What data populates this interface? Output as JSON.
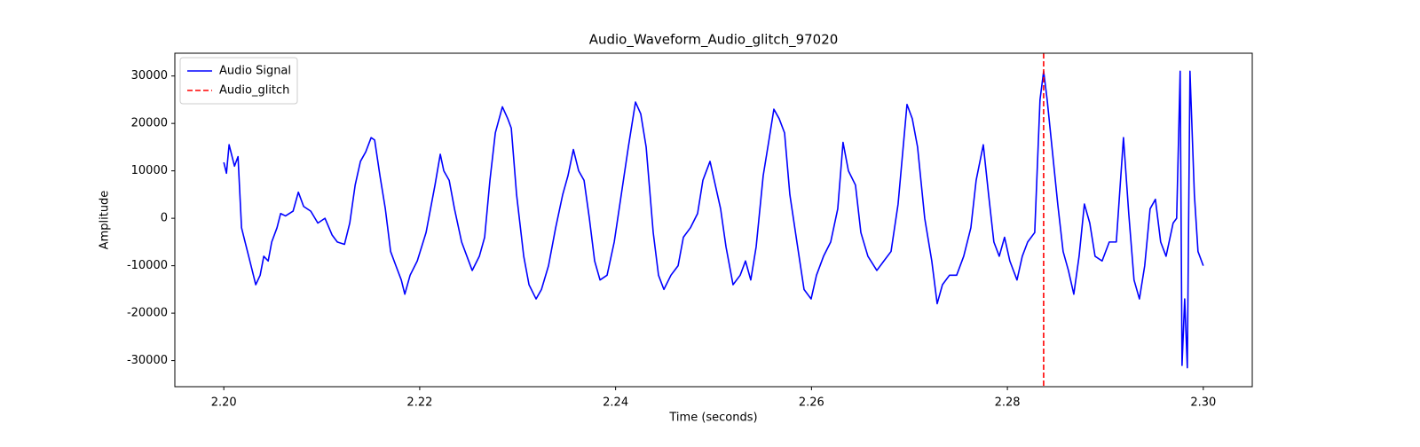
{
  "chart_data": {
    "type": "line",
    "title": "Audio_Waveform_Audio_glitch_97020",
    "xlabel": "Time (seconds)",
    "ylabel": "Amplitude",
    "x": [
      2.2,
      2.20027,
      2.20054,
      2.20109,
      2.20145,
      2.20181,
      2.20217,
      2.20254,
      2.2029,
      2.20326,
      2.20371,
      2.20408,
      2.20453,
      2.20489,
      2.20543,
      2.2058,
      2.2063,
      2.20707,
      2.20761,
      2.20815,
      2.20888,
      2.2096,
      2.21033,
      2.21105,
      2.21159,
      2.21232,
      2.21286,
      2.21341,
      2.21395,
      2.21449,
      2.21504,
      2.2154,
      2.21594,
      2.21649,
      2.21703,
      2.21757,
      2.21812,
      2.21848,
      2.21902,
      2.21975,
      2.22065,
      2.22156,
      2.2221,
      2.22246,
      2.22301,
      2.22355,
      2.22428,
      2.22482,
      2.22536,
      2.22609,
      2.22663,
      2.22717,
      2.22772,
      2.22844,
      2.22899,
      2.22935,
      2.22989,
      2.23062,
      2.23116,
      2.23188,
      2.23243,
      2.23315,
      2.23388,
      2.2346,
      2.23514,
      2.23569,
      2.23623,
      2.23678,
      2.23732,
      2.23786,
      2.23841,
      2.23913,
      2.23986,
      2.24058,
      2.2413,
      2.24203,
      2.24257,
      2.24312,
      2.24384,
      2.24438,
      2.24493,
      2.24565,
      2.24638,
      2.24692,
      2.24764,
      2.24837,
      2.24891,
      2.24964,
      2.25018,
      2.25072,
      2.25127,
      2.25199,
      2.25272,
      2.25326,
      2.2538,
      2.25435,
      2.25507,
      2.25562,
      2.25616,
      2.2567,
      2.25725,
      2.25779,
      2.25851,
      2.25924,
      2.25996,
      2.26051,
      2.26123,
      2.26196,
      2.26268,
      2.26322,
      2.26377,
      2.26449,
      2.26504,
      2.26576,
      2.26667,
      2.26739,
      2.26812,
      2.26884,
      2.26975,
      2.27029,
      2.27083,
      2.27156,
      2.27228,
      2.27283,
      2.27337,
      2.27409,
      2.27482,
      2.27554,
      2.27627,
      2.27681,
      2.27754,
      2.27808,
      2.27862,
      2.27917,
      2.27971,
      2.28025,
      2.28098,
      2.28152,
      2.28207,
      2.28279,
      2.28333,
      2.2837,
      2.28406,
      2.2846,
      2.28514,
      2.28569,
      2.28623,
      2.28678,
      2.28732,
      2.28786,
      2.28841,
      2.28895,
      2.28967,
      2.2904,
      2.29112,
      2.29185,
      2.29239,
      2.29293,
      2.29348,
      2.29402,
      2.29457,
      2.29511,
      2.29565,
      2.2962,
      2.29692,
      2.29728,
      2.29764,
      2.29783,
      2.2981,
      2.29837,
      2.29864,
      2.29909,
      2.29946,
      2.3
    ],
    "series": [
      {
        "name": "Audio Signal",
        "color": "#0000ff",
        "values": [
          11800,
          9500,
          15500,
          11000,
          13000,
          -2000,
          -5000,
          -8000,
          -11000,
          -14000,
          -12000,
          -8000,
          -9000,
          -5000,
          -2000,
          1000,
          500,
          1500,
          5500,
          2500,
          1500,
          -1000,
          0,
          -3500,
          -5000,
          -5500,
          -1000,
          7000,
          12000,
          14000,
          17000,
          16500,
          9000,
          2000,
          -7000,
          -10000,
          -13000,
          -16000,
          -12000,
          -9000,
          -3000,
          7000,
          13500,
          10000,
          8000,
          2000,
          -5000,
          -8000,
          -11000,
          -8000,
          -4000,
          8000,
          18000,
          23500,
          21000,
          19000,
          5000,
          -8000,
          -14000,
          -17000,
          -15000,
          -10000,
          -2000,
          5000,
          9000,
          14500,
          10000,
          8000,
          0,
          -9000,
          -13000,
          -12000,
          -5000,
          5000,
          15000,
          24500,
          22000,
          15000,
          -3000,
          -12000,
          -15000,
          -12000,
          -10000,
          -4000,
          -2000,
          1000,
          8000,
          12000,
          7000,
          2000,
          -6000,
          -14000,
          -12000,
          -9000,
          -13000,
          -6000,
          9000,
          16000,
          23000,
          21000,
          18000,
          5000,
          -5000,
          -15000,
          -17000,
          -12000,
          -8000,
          -5000,
          2000,
          16000,
          10000,
          7000,
          -3000,
          -8000,
          -11000,
          -9000,
          -7000,
          3000,
          24000,
          21000,
          15000,
          0,
          -9000,
          -18000,
          -14000,
          -12000,
          -12000,
          -8000,
          -2000,
          8000,
          15500,
          5000,
          -5000,
          -8000,
          -4000,
          -9000,
          -13000,
          -8000,
          -5000,
          -3000,
          25000,
          31000,
          25000,
          14000,
          3000,
          -7000,
          -11000,
          -16000,
          -8000,
          3000,
          -1000,
          -8000,
          -9000,
          -5000,
          -5000,
          17000,
          1000,
          -13000,
          -17000,
          -10000,
          2000,
          4000,
          -5000,
          -8000,
          -1000,
          0,
          31000,
          -31000,
          -17000,
          -31500,
          31000,
          5000,
          -7000,
          -10000
        ]
      }
    ],
    "vlines": [
      {
        "name": "Audio_glitch",
        "x": 2.2837,
        "color": "#ff0000"
      }
    ],
    "xlim": [
      2.195,
      2.305
    ],
    "ylim": [
      -35500,
      34800
    ],
    "xticks": [
      {
        "value": 2.2,
        "label": "2.20"
      },
      {
        "value": 2.22,
        "label": "2.22"
      },
      {
        "value": 2.24,
        "label": "2.24"
      },
      {
        "value": 2.26,
        "label": "2.26"
      },
      {
        "value": 2.28,
        "label": "2.28"
      },
      {
        "value": 2.3,
        "label": "2.30"
      }
    ],
    "yticks": [
      -30000,
      -20000,
      -10000,
      0,
      10000,
      20000,
      30000
    ],
    "legend": "upper left"
  }
}
